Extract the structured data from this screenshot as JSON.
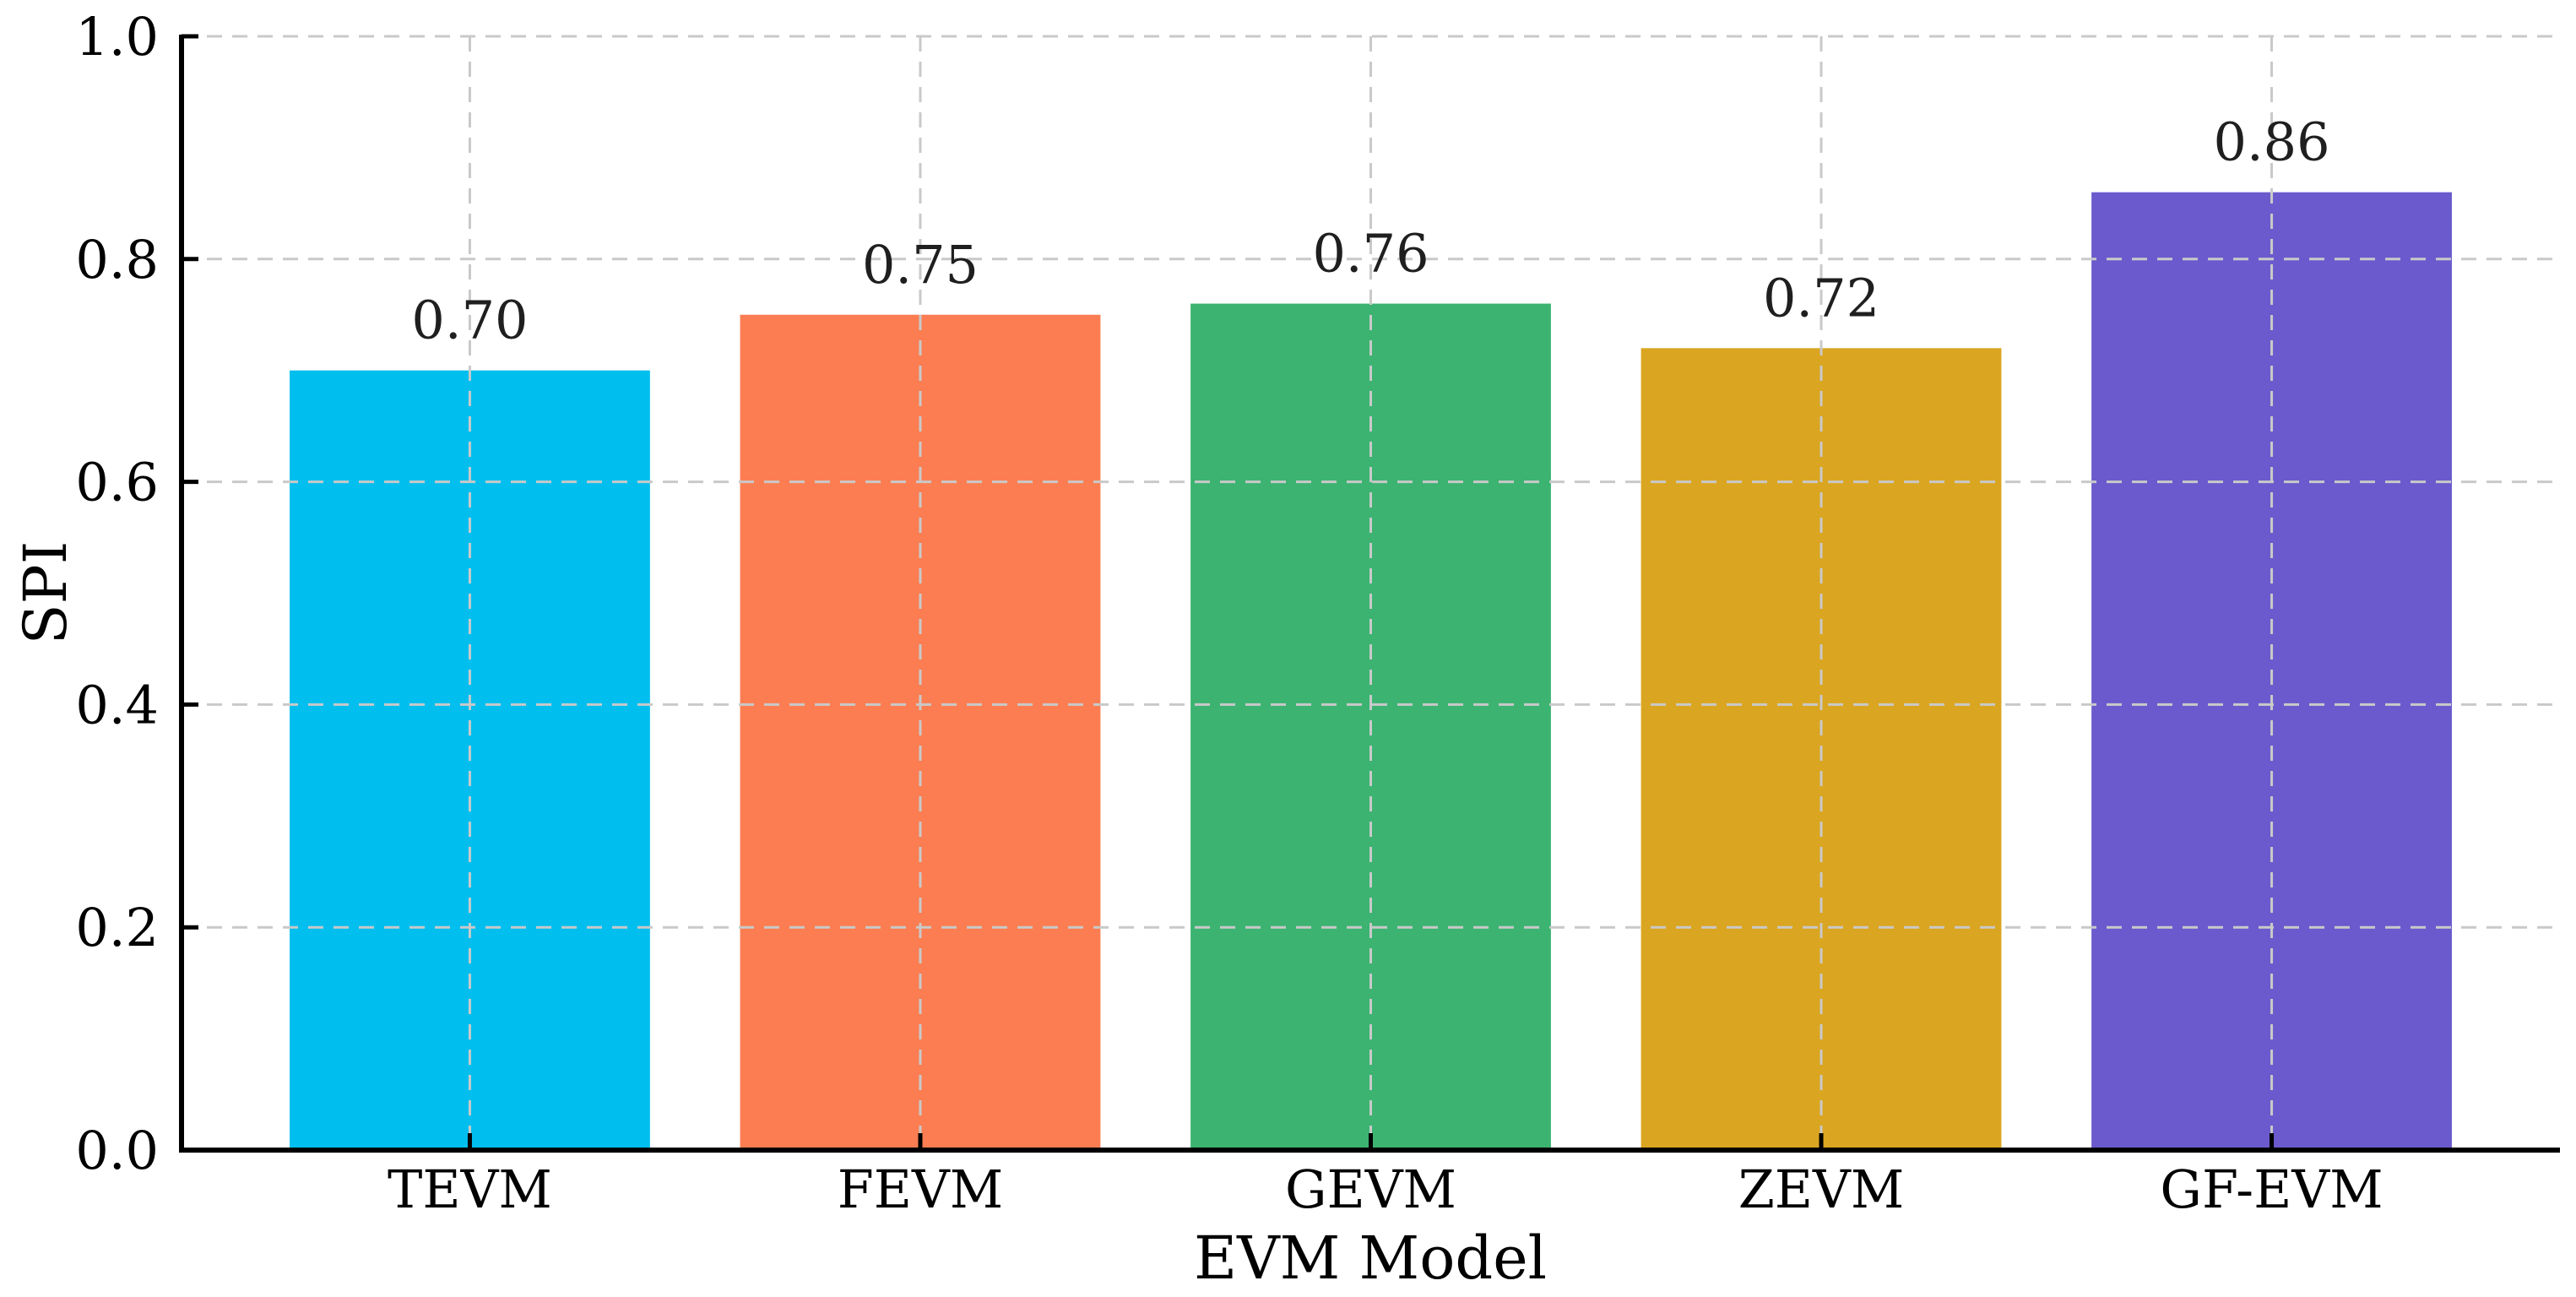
{
  "chart_data": {
    "type": "bar",
    "title": "",
    "categories": [
      "TEVM",
      "FEVM",
      "GEVM",
      "ZEVM",
      "GF-EVM"
    ],
    "values": [
      0.7,
      0.75,
      0.76,
      0.72,
      0.86
    ],
    "value_labels": [
      "0.70",
      "0.75",
      "0.76",
      "0.72",
      "0.86"
    ],
    "bar_colors": [
      "#00bfef",
      "#fb7d51",
      "#3cb371",
      "#daa520",
      "#6a5acd"
    ],
    "xlabel": "EVM Model",
    "ylabel": "SPI",
    "ylim": [
      0.0,
      1.0
    ],
    "yticks": [
      0.0,
      0.2,
      0.4,
      0.6,
      0.8,
      1.0
    ],
    "ytick_labels": [
      "0.0",
      "0.2",
      "0.4",
      "0.6",
      "0.8",
      "1.0"
    ],
    "grid": {
      "style": "dashed",
      "color": "#c9c9c9",
      "axes": "both",
      "drawn_over_bars": true
    },
    "legend": "none"
  },
  "colors": {
    "background": "#ffffff",
    "axis": "#000000",
    "tick_text": "#000000",
    "value_text": "#1f1f1f"
  }
}
